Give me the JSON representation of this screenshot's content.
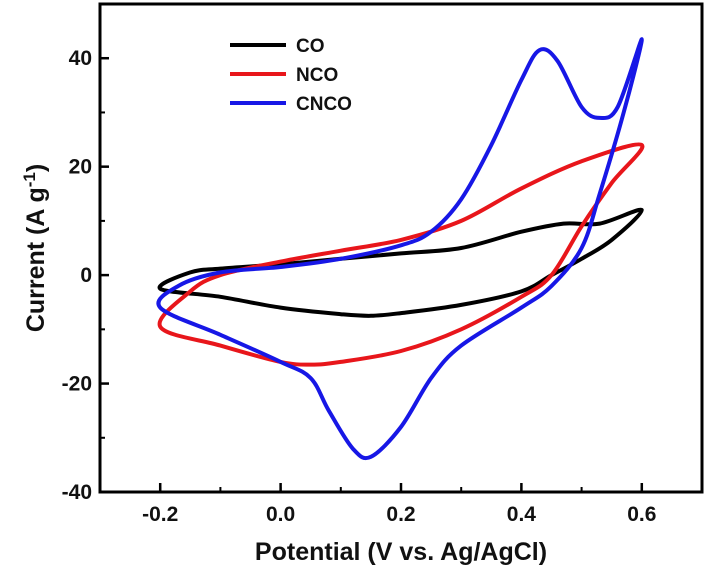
{
  "chart_data": {
    "type": "line",
    "title": "",
    "xlabel": "Potential (V vs. Ag/AgCl)",
    "ylabel_main": "Current (A g",
    "ylabel_sup": "-1",
    "ylabel_close": ")",
    "xlim": [
      -0.3,
      0.7
    ],
    "ylim": [
      -40,
      50
    ],
    "xticks": [
      -0.2,
      0.0,
      0.2,
      0.4,
      0.6
    ],
    "xtick_labels": [
      "-0.2",
      "0.0",
      "0.2",
      "0.4",
      "0.6"
    ],
    "yticks": [
      -40,
      -20,
      0,
      20,
      40
    ],
    "ytick_labels": [
      "-40",
      "-20",
      "0",
      "20",
      "40"
    ],
    "grid": false,
    "legend_position": "top-left",
    "series": [
      {
        "name": "CO",
        "color": "#000000",
        "points": [
          [
            -0.2,
            -2.5
          ],
          [
            -0.15,
            0.5
          ],
          [
            -0.1,
            1.2
          ],
          [
            0.0,
            2.0
          ],
          [
            0.1,
            3.0
          ],
          [
            0.2,
            4.0
          ],
          [
            0.3,
            5.0
          ],
          [
            0.4,
            8.0
          ],
          [
            0.47,
            9.5
          ],
          [
            0.53,
            9.5
          ],
          [
            0.6,
            12.0
          ],
          [
            0.55,
            6.5
          ],
          [
            0.5,
            3.0
          ],
          [
            0.45,
            0.0
          ],
          [
            0.4,
            -3.0
          ],
          [
            0.3,
            -5.5
          ],
          [
            0.2,
            -7.0
          ],
          [
            0.15,
            -7.5
          ],
          [
            0.1,
            -7.2
          ],
          [
            0.0,
            -6.0
          ],
          [
            -0.1,
            -4.0
          ],
          [
            -0.2,
            -2.5
          ]
        ]
      },
      {
        "name": "NCO",
        "color": "#e8161b",
        "points": [
          [
            -0.2,
            -9.5
          ],
          [
            -0.15,
            -3.0
          ],
          [
            -0.1,
            0.0
          ],
          [
            0.0,
            2.5
          ],
          [
            0.1,
            4.5
          ],
          [
            0.2,
            6.5
          ],
          [
            0.3,
            10.0
          ],
          [
            0.4,
            16.0
          ],
          [
            0.5,
            21.0
          ],
          [
            0.6,
            24.0
          ],
          [
            0.55,
            17.0
          ],
          [
            0.5,
            9.0
          ],
          [
            0.45,
            0.0
          ],
          [
            0.4,
            -4.0
          ],
          [
            0.3,
            -10.0
          ],
          [
            0.2,
            -14.0
          ],
          [
            0.1,
            -16.0
          ],
          [
            0.05,
            -16.5
          ],
          [
            0.0,
            -16.0
          ],
          [
            -0.1,
            -13.0
          ],
          [
            -0.2,
            -9.5
          ]
        ]
      },
      {
        "name": "CNCO",
        "color": "#1717e6",
        "points": [
          [
            -0.2,
            -6.0
          ],
          [
            -0.17,
            -2.0
          ],
          [
            -0.1,
            0.5
          ],
          [
            0.0,
            1.5
          ],
          [
            0.1,
            3.0
          ],
          [
            0.2,
            5.5
          ],
          [
            0.25,
            8.0
          ],
          [
            0.3,
            14.0
          ],
          [
            0.35,
            24.0
          ],
          [
            0.4,
            36.0
          ],
          [
            0.43,
            41.5
          ],
          [
            0.46,
            39.5
          ],
          [
            0.5,
            31.0
          ],
          [
            0.53,
            29.0
          ],
          [
            0.56,
            31.0
          ],
          [
            0.6,
            43.5
          ],
          [
            0.57,
            30.0
          ],
          [
            0.53,
            15.0
          ],
          [
            0.5,
            5.0
          ],
          [
            0.45,
            -2.0
          ],
          [
            0.4,
            -6.0
          ],
          [
            0.3,
            -13.0
          ],
          [
            0.25,
            -19.0
          ],
          [
            0.2,
            -28.0
          ],
          [
            0.15,
            -33.5
          ],
          [
            0.12,
            -32.0
          ],
          [
            0.08,
            -25.0
          ],
          [
            0.05,
            -19.0
          ],
          [
            0.0,
            -16.0
          ],
          [
            -0.1,
            -11.0
          ],
          [
            -0.2,
            -6.0
          ]
        ]
      }
    ]
  }
}
